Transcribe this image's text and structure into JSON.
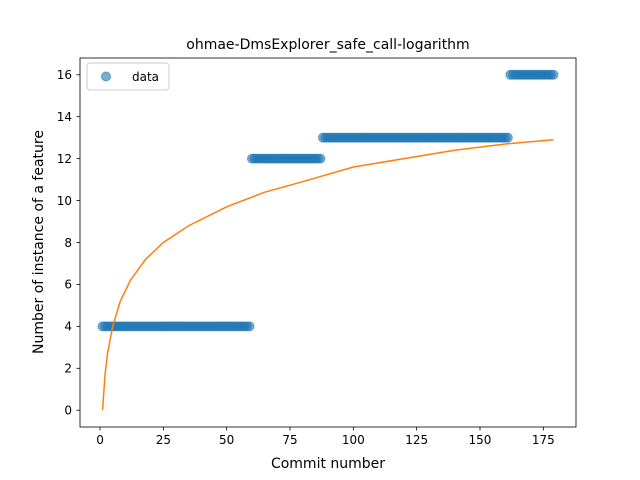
{
  "chart_data": {
    "type": "scatter",
    "title": "ohmae-DmsExplorer_safe_call-logarithm",
    "xlabel": "Commit number",
    "ylabel": "Number of instance of a feature",
    "xlim": [
      -7.9,
      187.9
    ],
    "ylim": [
      -0.8,
      16.8
    ],
    "xticks": [
      0,
      25,
      50,
      75,
      100,
      125,
      150,
      175
    ],
    "yticks": [
      0,
      2,
      4,
      6,
      8,
      10,
      12,
      14,
      16
    ],
    "grid": false,
    "legend": {
      "placement": "upper-left",
      "entries": [
        "data"
      ]
    },
    "series": [
      {
        "name": "data",
        "kind": "scatter",
        "color": "#1f77b4",
        "segments": [
          {
            "x_start": 1,
            "x_end": 59,
            "y": 4
          },
          {
            "x_start": 60,
            "x_end": 87,
            "y": 12
          },
          {
            "x_start": 88,
            "x_end": 161,
            "y": 13
          },
          {
            "x_start": 162,
            "x_end": 179,
            "y": 16
          }
        ]
      },
      {
        "kind": "line",
        "color": "#ff7f0e",
        "model": "logarithmic",
        "x": [
          1,
          2,
          3,
          5,
          8,
          12,
          18,
          25,
          35,
          50,
          65,
          80,
          100,
          120,
          140,
          160,
          179
        ],
        "y": [
          0.0,
          1.72,
          2.73,
          4.0,
          5.2,
          6.2,
          7.2,
          8.0,
          8.8,
          9.7,
          10.4,
          10.9,
          11.6,
          12.0,
          12.4,
          12.7,
          12.9
        ]
      }
    ]
  }
}
